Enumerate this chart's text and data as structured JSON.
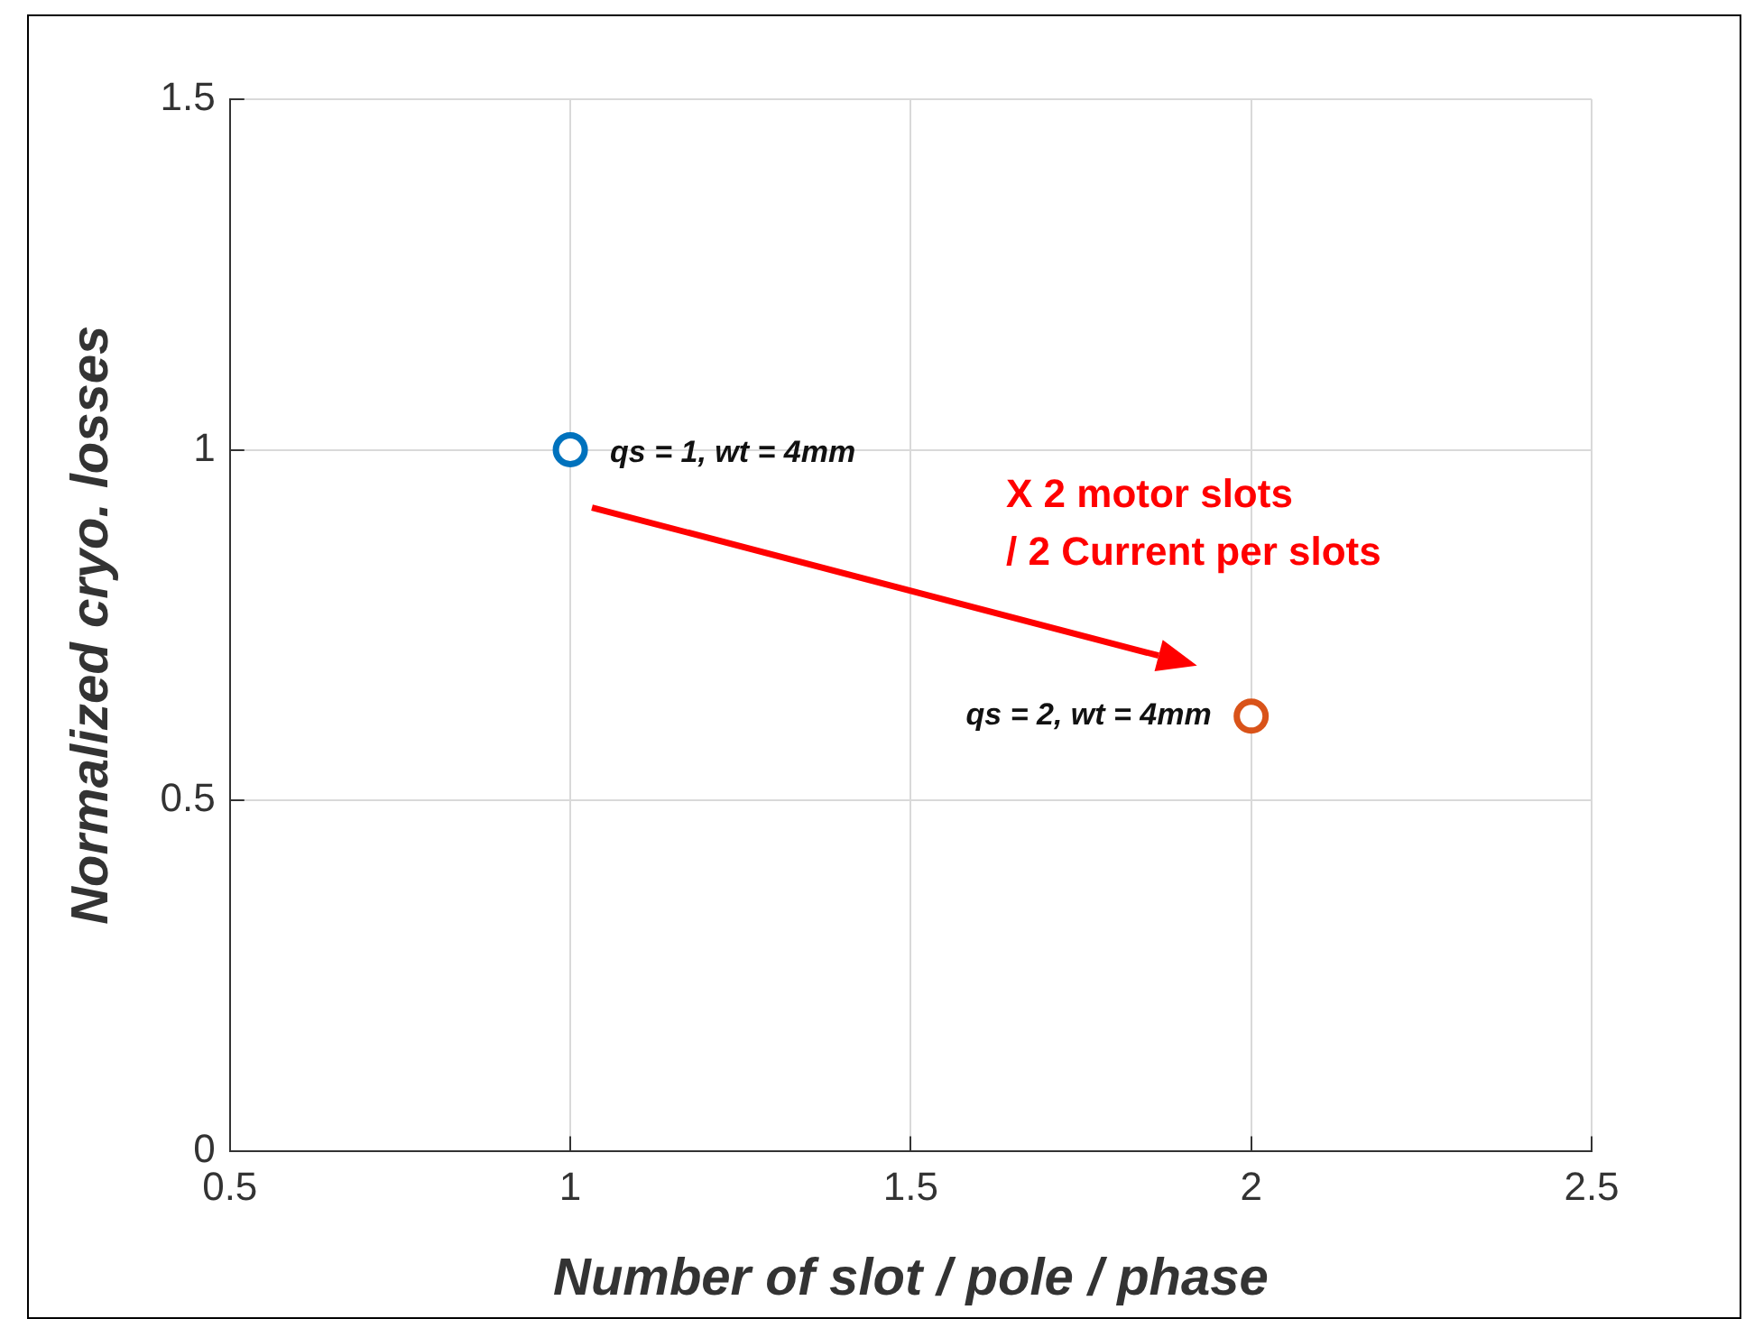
{
  "chart_data": {
    "type": "scatter",
    "xlabel": "Number of slot / pole / phase",
    "ylabel": "Normalized cryo. losses",
    "series": [
      {
        "x": [
          1
        ],
        "values": [
          1
        ],
        "color": "#0072bd"
      },
      {
        "x": [
          2
        ],
        "values": [
          0.62
        ],
        "color": "#d95319"
      }
    ],
    "marker": "circle",
    "grid": true,
    "xlim": [
      0.5,
      2.5
    ],
    "xticks": [
      0.5,
      1,
      1.5,
      2,
      2.5
    ],
    "ylim": [
      0,
      1.5
    ],
    "yticks": [
      0,
      0.5,
      1,
      1.5
    ],
    "annotations": [
      {
        "text": "qs = 1, wt = 4mm",
        "x": 1,
        "y": 1
      },
      {
        "text": "qs = 2, wt = 4mm",
        "x": 2,
        "y": 0.62
      },
      "X 2 motor slots\n/ 2 Current per slots"
    ]
  }
}
